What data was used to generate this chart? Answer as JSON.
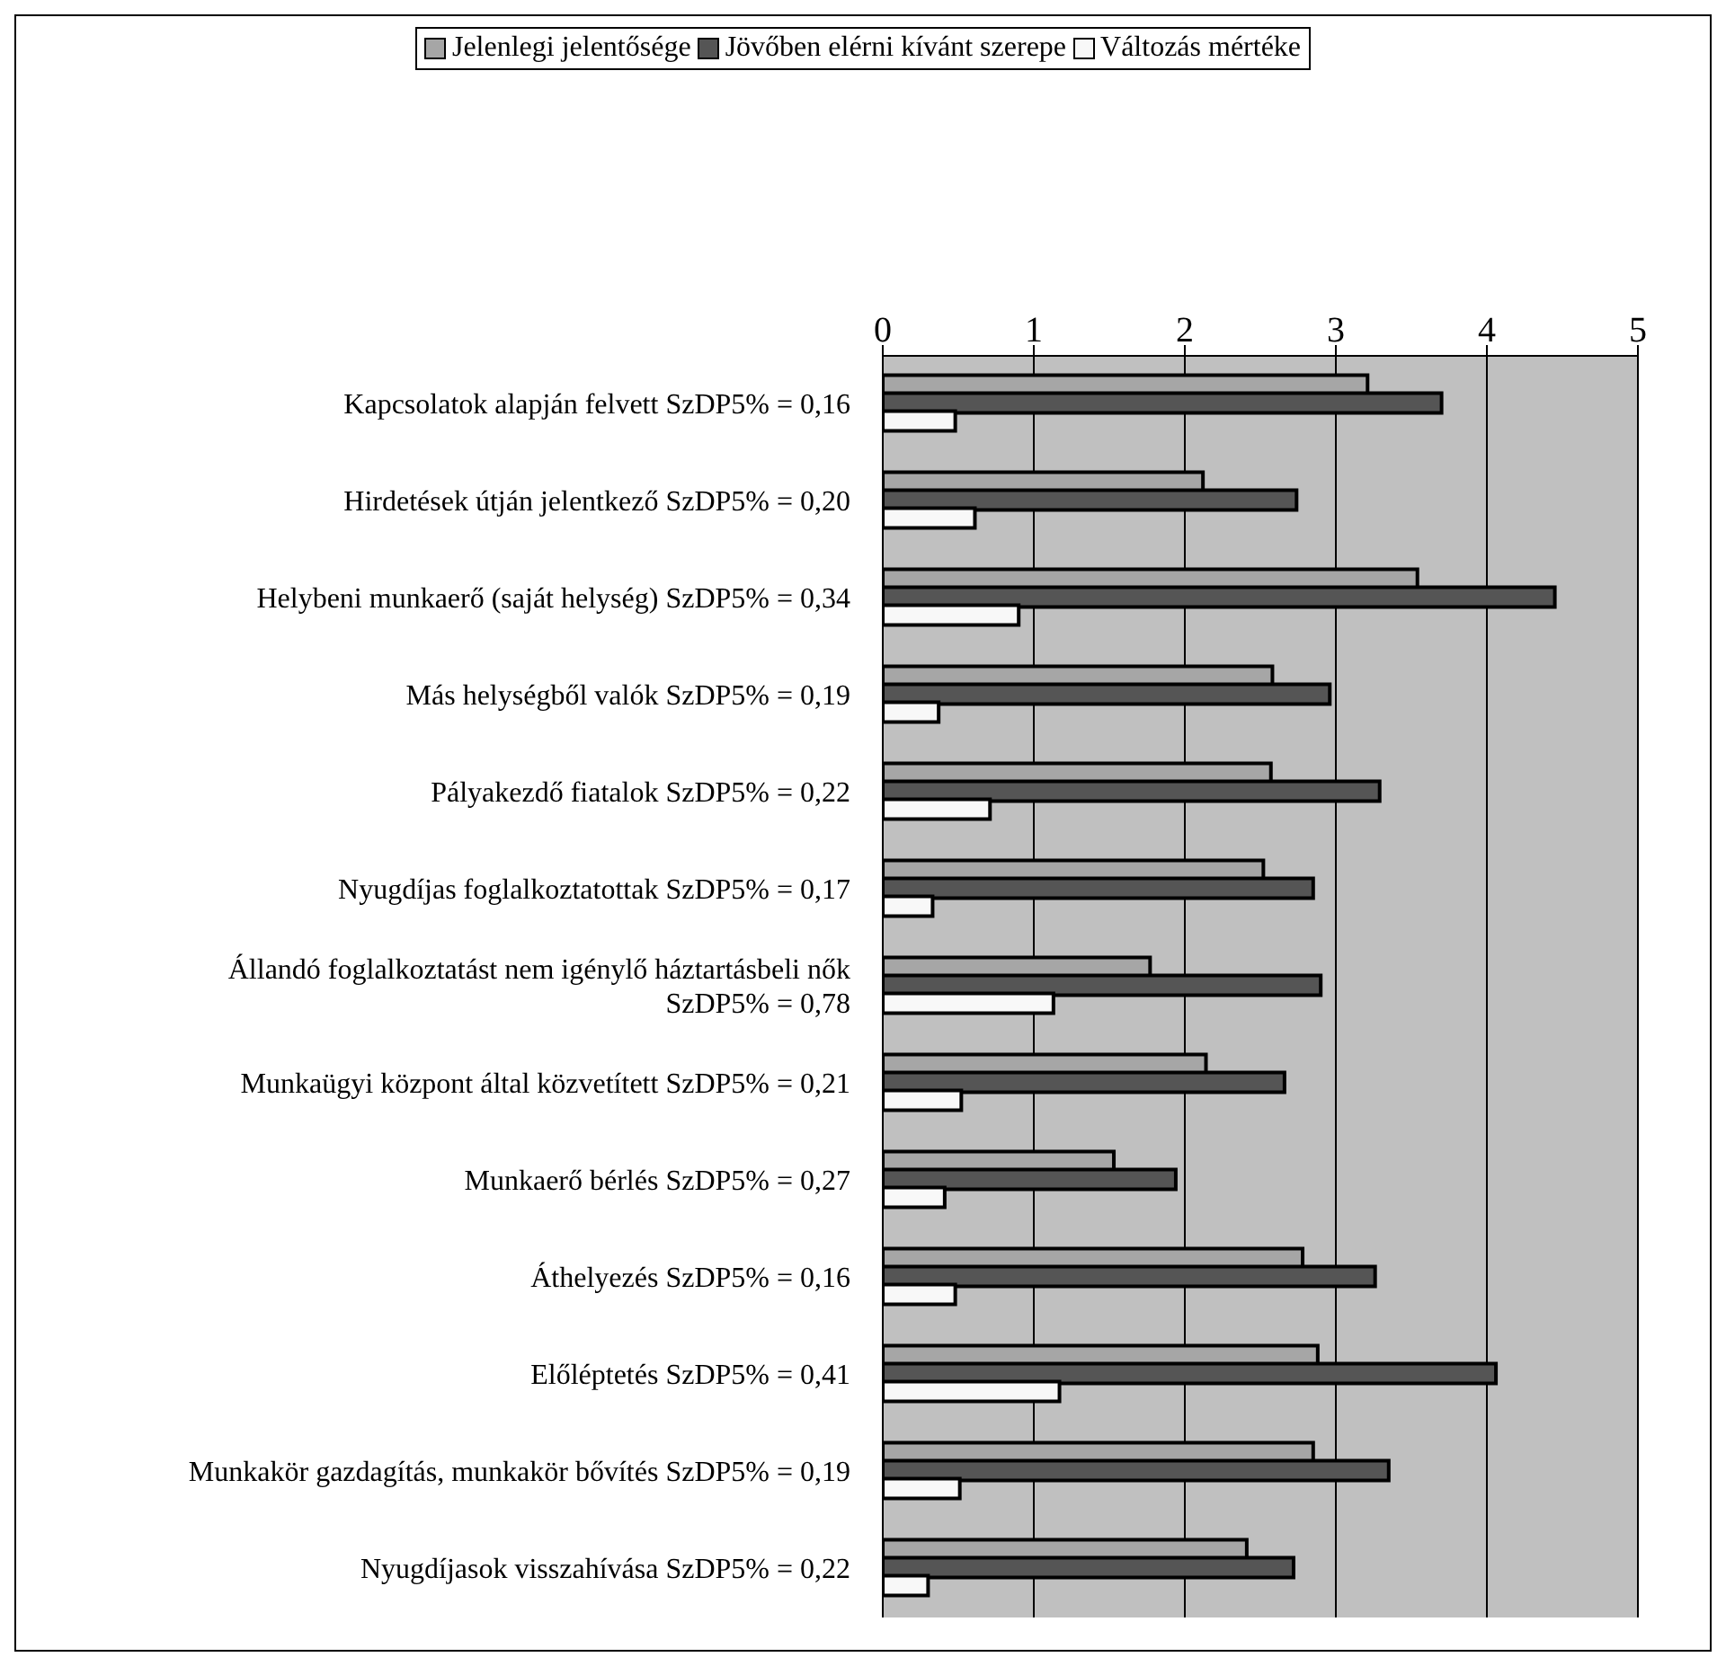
{
  "chart_data": {
    "type": "bar",
    "orientation": "horizontal",
    "categories": [
      "Kapcsolatok alapján felvett SzDP5% = 0,16",
      "Hirdetések útján jelentkező SzDP5% = 0,20",
      "Helybeni munkaerő (saját helység) SzDP5% = 0,34",
      "Más helységből valók SzDP5% = 0,19",
      "Pályakezdő fiatalok SzDP5% = 0,22",
      "Nyugdíjas foglalkoztatottak SzDP5% = 0,17",
      "Állandó foglalkoztatást nem igénylő háztartásbeli nők SzDP5% = 0,78",
      "Munkaügyi központ által közvetített SzDP5% = 0,21",
      "Munkaerő bérlés SzDP5% = 0,27",
      "Áthelyezés SzDP5% = 0,16",
      "Előléptetés SzDP5% = 0,41",
      "Munkakör gazdagítás, munkakör bővítés SzDP5% = 0,19",
      "Nyugdíjasok visszahívása SzDP5% = 0,22"
    ],
    "series": [
      {
        "name": "Jelenlegi jelentősége",
        "color": "#a6a6a6",
        "values": [
          3.21,
          2.12,
          3.54,
          2.58,
          2.57,
          2.52,
          1.77,
          2.14,
          1.53,
          2.78,
          2.88,
          2.85,
          2.41
        ]
      },
      {
        "name": "Jövőben elérni kívánt szerepe",
        "color": "#555555",
        "values": [
          3.7,
          2.74,
          4.45,
          2.96,
          3.29,
          2.85,
          2.9,
          2.66,
          1.94,
          3.26,
          4.06,
          3.35,
          2.72
        ]
      },
      {
        "name": "Változás mértéke",
        "color": "#f8f8f8",
        "values": [
          0.48,
          0.61,
          0.9,
          0.37,
          0.71,
          0.33,
          1.13,
          0.52,
          0.41,
          0.48,
          1.17,
          0.51,
          0.3
        ]
      }
    ],
    "xlim": [
      0,
      5
    ],
    "xticks": [
      0,
      1,
      2,
      3,
      4,
      5
    ],
    "grid": "x",
    "legend": "top"
  }
}
